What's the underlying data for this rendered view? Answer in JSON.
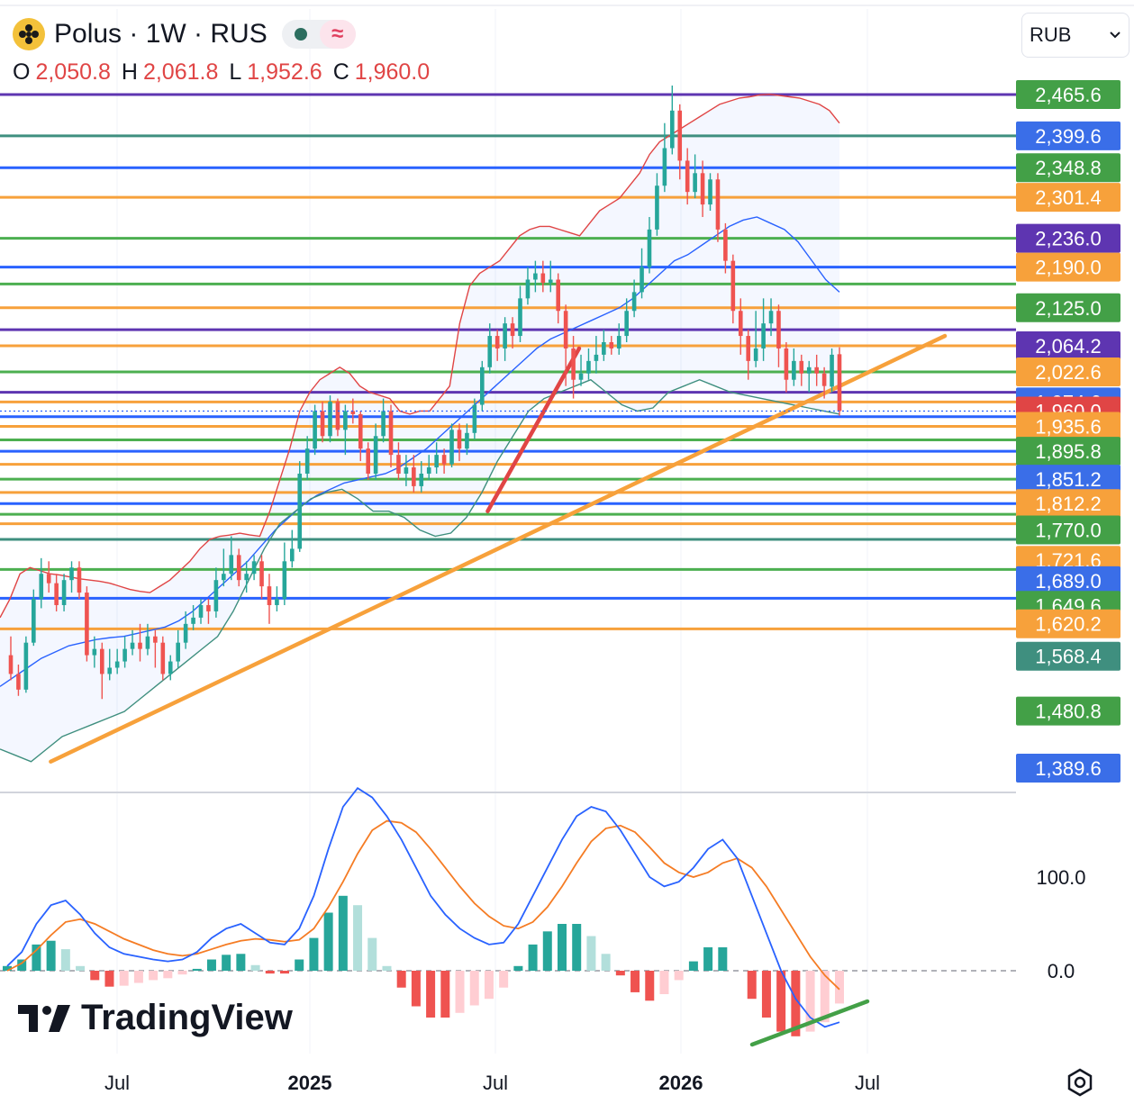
{
  "header": {
    "title": "Polus · 1W · RUS",
    "ohlc": [
      {
        "label": "O",
        "value": "2,050.8"
      },
      {
        "label": "H",
        "value": "2,061.8"
      },
      {
        "label": "L",
        "value": "1,952.6"
      },
      {
        "label": "C",
        "value": "1,960.0"
      }
    ],
    "currency": "RUB",
    "brand": "TradingView"
  },
  "colors": {
    "up": "#26a69a",
    "down": "#ef5350",
    "orange": "#f7a13b",
    "blue": "#2962ff",
    "green": "#4caf50",
    "purple": "#5e35b1"
  },
  "chart_data": [
    {
      "type": "candlestick",
      "title": "",
      "x_ticks": [
        "Jul",
        "2025",
        "Jul",
        "2026",
        "Jul"
      ],
      "price_axis_labels": [
        {
          "value": "2,465.6",
          "color": "#43a047"
        },
        {
          "value": "2,399.6",
          "color": "#3a6ee8"
        },
        {
          "value": "2,348.8",
          "color": "#43a047"
        },
        {
          "value": "2,301.4",
          "color": "#f7a13b"
        },
        {
          "value": "2,236.0",
          "color": "#5e35b1"
        },
        {
          "value": "2,190.0",
          "color": "#f7a13b"
        },
        {
          "value": "2,125.0",
          "color": "#43a047"
        },
        {
          "value": "2,064.2",
          "color": "#5e35b1"
        },
        {
          "value": "2,022.6",
          "color": "#f7a13b"
        },
        {
          "value": "1,974.6",
          "color": "#3a6ee8"
        },
        {
          "value": "1,960.0",
          "color": "#e04545"
        },
        {
          "value": "1,935.6",
          "color": "#f7a13b"
        },
        {
          "value": "1,895.8",
          "color": "#43a047"
        },
        {
          "value": "1,851.2",
          "color": "#3a6ee8"
        },
        {
          "value": "1,812.2",
          "color": "#f7a13b"
        },
        {
          "value": "1,770.0",
          "color": "#43a047"
        },
        {
          "value": "1,721.6",
          "color": "#f7a13b"
        },
        {
          "value": "1,689.0",
          "color": "#3a6ee8"
        },
        {
          "value": "1,649.6",
          "color": "#43a047"
        },
        {
          "value": "1,620.2",
          "color": "#f7a13b"
        },
        {
          "value": "1,568.4",
          "color": "#3f8f7f"
        },
        {
          "value": "1,480.8",
          "color": "#43a047"
        },
        {
          "value": "1,389.6",
          "color": "#3a6ee8"
        }
      ],
      "horizontal_levels": [
        {
          "price": 2465.6,
          "color": "#5e35b1"
        },
        {
          "price": 2399.6,
          "color": "#3f8f7f"
        },
        {
          "price": 2348.8,
          "color": "#2962ff"
        },
        {
          "price": 2301.4,
          "color": "#f7a13b"
        },
        {
          "price": 2236.0,
          "color": "#4caf50"
        },
        {
          "price": 2190.0,
          "color": "#2962ff"
        },
        {
          "price": 2163.0,
          "color": "#4caf50"
        },
        {
          "price": 2125.0,
          "color": "#f7a13b"
        },
        {
          "price": 2090.0,
          "color": "#5e35b1"
        },
        {
          "price": 2064.2,
          "color": "#f7a13b"
        },
        {
          "price": 2022.6,
          "color": "#4caf50"
        },
        {
          "price": 1990.0,
          "color": "#5e35b1"
        },
        {
          "price": 1974.6,
          "color": "#f7a13b"
        },
        {
          "price": 1951.0,
          "color": "#2962ff"
        },
        {
          "price": 1935.6,
          "color": "#f7a13b"
        },
        {
          "price": 1914.0,
          "color": "#4caf50"
        },
        {
          "price": 1895.8,
          "color": "#2962ff"
        },
        {
          "price": 1875.0,
          "color": "#f7a13b"
        },
        {
          "price": 1851.2,
          "color": "#4caf50"
        },
        {
          "price": 1830.0,
          "color": "#f7a13b"
        },
        {
          "price": 1812.2,
          "color": "#2962ff"
        },
        {
          "price": 1795.0,
          "color": "#4caf50"
        },
        {
          "price": 1780.0,
          "color": "#f7a13b"
        },
        {
          "price": 1755.0,
          "color": "#3f8f7f"
        },
        {
          "price": 1707.0,
          "color": "#4caf50"
        },
        {
          "price": 1661.0,
          "color": "#2962ff"
        },
        {
          "price": 1612.0,
          "color": "#f7a13b"
        }
      ],
      "last_price": 1960.0,
      "candles": [
        [
          1570,
          1540,
          1600,
          1530
        ],
        [
          1540,
          1515,
          1555,
          1505
        ],
        [
          1515,
          1590,
          1600,
          1510
        ],
        [
          1590,
          1660,
          1675,
          1585
        ],
        [
          1660,
          1700,
          1725,
          1645
        ],
        [
          1700,
          1685,
          1720,
          1670
        ],
        [
          1685,
          1650,
          1700,
          1640
        ],
        [
          1650,
          1690,
          1700,
          1640
        ],
        [
          1690,
          1710,
          1720,
          1670
        ],
        [
          1710,
          1670,
          1720,
          1660
        ],
        [
          1670,
          1570,
          1680,
          1560
        ],
        [
          1570,
          1580,
          1600,
          1550
        ],
        [
          1580,
          1540,
          1590,
          1500
        ],
        [
          1540,
          1550,
          1580,
          1530
        ],
        [
          1550,
          1560,
          1580,
          1540
        ],
        [
          1560,
          1580,
          1600,
          1550
        ],
        [
          1580,
          1590,
          1610,
          1570
        ],
        [
          1590,
          1580,
          1620,
          1560
        ],
        [
          1580,
          1600,
          1620,
          1570
        ],
        [
          1600,
          1590,
          1610,
          1550
        ],
        [
          1590,
          1540,
          1600,
          1530
        ],
        [
          1540,
          1560,
          1570,
          1530
        ],
        [
          1560,
          1590,
          1610,
          1550
        ],
        [
          1590,
          1620,
          1640,
          1580
        ],
        [
          1620,
          1630,
          1650,
          1610
        ],
        [
          1630,
          1650,
          1660,
          1620
        ],
        [
          1650,
          1640,
          1660,
          1620
        ],
        [
          1640,
          1690,
          1710,
          1630
        ],
        [
          1690,
          1700,
          1740,
          1680
        ],
        [
          1700,
          1730,
          1760,
          1690
        ],
        [
          1730,
          1690,
          1740,
          1680
        ],
        [
          1690,
          1700,
          1720,
          1670
        ],
        [
          1700,
          1720,
          1730,
          1690
        ],
        [
          1720,
          1680,
          1730,
          1660
        ],
        [
          1680,
          1650,
          1700,
          1620
        ],
        [
          1650,
          1660,
          1680,
          1640
        ],
        [
          1660,
          1720,
          1750,
          1650
        ],
        [
          1720,
          1740,
          1770,
          1710
        ],
        [
          1740,
          1860,
          1880,
          1735
        ],
        [
          1860,
          1900,
          1920,
          1850
        ],
        [
          1900,
          1960,
          1970,
          1890
        ],
        [
          1960,
          1920,
          1975,
          1910
        ],
        [
          1920,
          1975,
          1985,
          1910
        ],
        [
          1975,
          1930,
          1980,
          1920
        ],
        [
          1930,
          1960,
          1970,
          1890
        ],
        [
          1960,
          1955,
          1980,
          1940
        ],
        [
          1955,
          1900,
          1960,
          1880
        ],
        [
          1900,
          1860,
          1910,
          1850
        ],
        [
          1860,
          1920,
          1940,
          1850
        ],
        [
          1920,
          1960,
          1980,
          1910
        ],
        [
          1960,
          1890,
          1970,
          1870
        ],
        [
          1890,
          1860,
          1910,
          1850
        ],
        [
          1860,
          1870,
          1890,
          1840
        ],
        [
          1870,
          1840,
          1890,
          1830
        ],
        [
          1840,
          1860,
          1880,
          1830
        ],
        [
          1860,
          1870,
          1890,
          1850
        ],
        [
          1870,
          1890,
          1910,
          1860
        ],
        [
          1890,
          1875,
          1900,
          1860
        ],
        [
          1875,
          1930,
          1940,
          1870
        ],
        [
          1930,
          1900,
          1940,
          1880
        ],
        [
          1900,
          1925,
          1940,
          1890
        ],
        [
          1925,
          1970,
          1980,
          1915
        ],
        [
          1970,
          2030,
          2040,
          1960
        ],
        [
          2030,
          2080,
          2100,
          2020
        ],
        [
          2080,
          2060,
          2090,
          2040
        ],
        [
          2060,
          2100,
          2110,
          2040
        ],
        [
          2100,
          2080,
          2110,
          2060
        ],
        [
          2080,
          2140,
          2160,
          2070
        ],
        [
          2140,
          2170,
          2190,
          2130
        ],
        [
          2170,
          2180,
          2200,
          2150
        ],
        [
          2180,
          2165,
          2200,
          2150
        ],
        [
          2165,
          2170,
          2200,
          2150
        ],
        [
          2170,
          2120,
          2180,
          2100
        ],
        [
          2120,
          2060,
          2130,
          2000
        ],
        [
          2060,
          2010,
          2080,
          1980
        ],
        [
          2010,
          2020,
          2050,
          2000
        ],
        [
          2020,
          2040,
          2060,
          2010
        ],
        [
          2040,
          2050,
          2080,
          2020
        ],
        [
          2050,
          2070,
          2090,
          2040
        ],
        [
          2070,
          2060,
          2080,
          2050
        ],
        [
          2060,
          2080,
          2100,
          2050
        ],
        [
          2080,
          2120,
          2140,
          2070
        ],
        [
          2120,
          2150,
          2170,
          2110
        ],
        [
          2150,
          2190,
          2220,
          2140
        ],
        [
          2190,
          2250,
          2270,
          2180
        ],
        [
          2250,
          2320,
          2340,
          2240
        ],
        [
          2320,
          2380,
          2420,
          2310
        ],
        [
          2380,
          2440,
          2480,
          2370
        ],
        [
          2440,
          2360,
          2450,
          2330
        ],
        [
          2360,
          2310,
          2380,
          2290
        ],
        [
          2310,
          2340,
          2370,
          2300
        ],
        [
          2340,
          2290,
          2360,
          2270
        ],
        [
          2290,
          2330,
          2340,
          2280
        ],
        [
          2330,
          2250,
          2340,
          2230
        ],
        [
          2250,
          2200,
          2260,
          2180
        ],
        [
          2200,
          2120,
          2210,
          2100
        ],
        [
          2120,
          2080,
          2140,
          2050
        ],
        [
          2080,
          2040,
          2090,
          2010
        ],
        [
          2040,
          2060,
          2120,
          2030
        ],
        [
          2060,
          2100,
          2140,
          2040
        ],
        [
          2100,
          2120,
          2140,
          2080
        ],
        [
          2120,
          2060,
          2130,
          2030
        ],
        [
          2060,
          2010,
          2070,
          1990
        ],
        [
          2010,
          2040,
          2060,
          2000
        ],
        [
          2040,
          2020,
          2050,
          2000
        ],
        [
          2020,
          2030,
          2040,
          1990
        ],
        [
          2030,
          2020,
          2050,
          2000
        ],
        [
          2020,
          2000,
          2030,
          1980
        ],
        [
          1999,
          2050,
          2060,
          1990
        ],
        [
          2050.8,
          1960.0,
          2061.8,
          1952.6
        ]
      ],
      "bollinger_upper": [
        1630,
        1660,
        1700,
        1710,
        1705,
        1700,
        1698,
        1695,
        1692,
        1690,
        1688,
        1685,
        1680,
        1675,
        1672,
        1670,
        1680,
        1690,
        1705,
        1720,
        1740,
        1755,
        1760,
        1762,
        1765,
        1762,
        1760,
        1800,
        1850,
        1900,
        1960,
        1990,
        2010,
        2020,
        2030,
        2020,
        2000,
        1990,
        1985,
        1980,
        1960,
        1955,
        1960,
        1960,
        1980,
        2000,
        2100,
        2160,
        2180,
        2190,
        2200,
        2220,
        2240,
        2250,
        2255,
        2255,
        2250,
        2245,
        2240,
        2260,
        2280,
        2290,
        2300,
        2320,
        2340,
        2370,
        2390,
        2400,
        2410,
        2420,
        2430,
        2440,
        2450,
        2455,
        2460,
        2462,
        2465,
        2466,
        2464,
        2462,
        2460,
        2455,
        2450,
        2440,
        2420
      ],
      "bollinger_middle": [
        1520,
        1535,
        1550,
        1565,
        1575,
        1585,
        1590,
        1595,
        1598,
        1600,
        1605,
        1610,
        1615,
        1625,
        1640,
        1660,
        1680,
        1700,
        1720,
        1745,
        1770,
        1790,
        1810,
        1825,
        1835,
        1845,
        1850,
        1855,
        1860,
        1870,
        1885,
        1900,
        1920,
        1940,
        1960,
        1980,
        2000,
        2020,
        2040,
        2060,
        2075,
        2085,
        2095,
        2105,
        2115,
        2125,
        2140,
        2160,
        2180,
        2200,
        2210,
        2225,
        2240,
        2255,
        2265,
        2270,
        2260,
        2250,
        2230,
        2200,
        2170,
        2150
      ],
      "bollinger_lower": [
        1420,
        1410,
        1400,
        1420,
        1440,
        1450,
        1460,
        1470,
        1480,
        1500,
        1520,
        1540,
        1560,
        1580,
        1600,
        1640,
        1690,
        1740,
        1780,
        1800,
        1820,
        1830,
        1835,
        1820,
        1800,
        1800,
        1790,
        1770,
        1760,
        1765,
        1790,
        1830,
        1880,
        1920,
        1960,
        1980,
        1990,
        2000,
        2010,
        1990,
        1970,
        1960,
        1965,
        1990,
        2000,
        2010,
        2000,
        1990,
        1985,
        1980,
        1975,
        1970,
        1965,
        1960,
        1955
      ],
      "trendlines": [
        {
          "color": "#f7a13b",
          "from": [
            0.05,
            1400
          ],
          "to": [
            0.93,
            2080
          ]
        },
        {
          "color": "#e04545",
          "from": [
            0.48,
            1800
          ],
          "to": [
            0.57,
            2060
          ]
        }
      ]
    },
    {
      "type": "macd",
      "y_ticks": [
        "100.0",
        "0.0"
      ],
      "macd": [
        5,
        20,
        50,
        70,
        75,
        60,
        40,
        25,
        18,
        15,
        12,
        10,
        12,
        20,
        35,
        45,
        50,
        40,
        30,
        28,
        45,
        80,
        130,
        175,
        195,
        185,
        165,
        140,
        110,
        80,
        60,
        45,
        35,
        28,
        30,
        50,
        80,
        110,
        140,
        165,
        175,
        170,
        150,
        125,
        100,
        90,
        95,
        110,
        130,
        140,
        120,
        80,
        40,
        0,
        -30,
        -50,
        -60,
        -55
      ],
      "signal": [
        0,
        8,
        22,
        38,
        52,
        55,
        50,
        42,
        34,
        28,
        22,
        18,
        16,
        18,
        23,
        28,
        32,
        34,
        33,
        31,
        33,
        45,
        68,
        95,
        125,
        150,
        160,
        158,
        148,
        130,
        110,
        90,
        72,
        58,
        48,
        45,
        52,
        68,
        90,
        115,
        138,
        152,
        155,
        148,
        132,
        115,
        105,
        100,
        105,
        115,
        120,
        110,
        90,
        65,
        40,
        15,
        -5,
        -20
      ],
      "histogram": [
        5,
        12,
        28,
        32,
        23,
        5,
        -10,
        -17,
        -16,
        -13,
        -10,
        -8,
        -4,
        2,
        12,
        17,
        18,
        6,
        -3,
        -3,
        12,
        35,
        62,
        80,
        70,
        35,
        5,
        -18,
        -38,
        -50,
        -50,
        -45,
        -37,
        -30,
        -18,
        5,
        28,
        42,
        50,
        50,
        37,
        18,
        -5,
        -23,
        -32,
        -25,
        -10,
        10,
        25,
        25,
        0,
        -30,
        -50,
        -65,
        -70,
        -65,
        -55,
        -35
      ]
    }
  ]
}
